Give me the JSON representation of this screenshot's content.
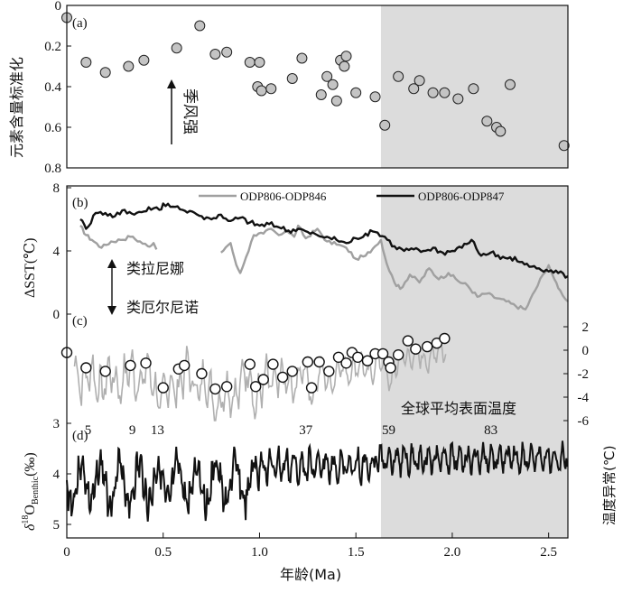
{
  "chart_data": {
    "type": "multi-panel",
    "shaded_interval": [
      1.63,
      2.6
    ],
    "x_axis": {
      "label": "年龄(Ma)",
      "range": [
        0,
        2.6
      ],
      "ticks": [
        "0",
        "0.5",
        "1.0",
        "1.5",
        "2.0",
        "2.5"
      ]
    },
    "panel_a": {
      "tag": "(a)",
      "type": "scatter",
      "ylabel": "元素含量标准化",
      "ylim": [
        0,
        0.8
      ],
      "y_reversed": true,
      "yticks": [
        "0",
        "0.2",
        "0.4",
        "0.6",
        "0.8"
      ],
      "annotation": "季风强",
      "points": [
        [
          0.0,
          0.06
        ],
        [
          0.1,
          0.28
        ],
        [
          0.2,
          0.33
        ],
        [
          0.32,
          0.3
        ],
        [
          0.4,
          0.27
        ],
        [
          0.57,
          0.21
        ],
        [
          0.69,
          0.1
        ],
        [
          0.77,
          0.24
        ],
        [
          0.83,
          0.23
        ],
        [
          0.95,
          0.28
        ],
        [
          1.0,
          0.28
        ],
        [
          0.99,
          0.4
        ],
        [
          1.01,
          0.42
        ],
        [
          1.06,
          0.41
        ],
        [
          1.17,
          0.36
        ],
        [
          1.22,
          0.26
        ],
        [
          1.32,
          0.44
        ],
        [
          1.35,
          0.35
        ],
        [
          1.38,
          0.39
        ],
        [
          1.4,
          0.47
        ],
        [
          1.42,
          0.27
        ],
        [
          1.44,
          0.3
        ],
        [
          1.45,
          0.25
        ],
        [
          1.5,
          0.43
        ],
        [
          1.6,
          0.45
        ],
        [
          1.65,
          0.59
        ],
        [
          1.72,
          0.35
        ],
        [
          1.8,
          0.41
        ],
        [
          1.83,
          0.37
        ],
        [
          1.9,
          0.43
        ],
        [
          1.96,
          0.43
        ],
        [
          2.03,
          0.46
        ],
        [
          2.11,
          0.41
        ],
        [
          2.18,
          0.57
        ],
        [
          2.23,
          0.6
        ],
        [
          2.25,
          0.62
        ],
        [
          2.3,
          0.39
        ],
        [
          2.58,
          0.69
        ]
      ]
    },
    "panel_b": {
      "tag": "(b)",
      "type": "line",
      "ylabel": "ΔSST(℃)",
      "ylim": [
        0,
        8
      ],
      "yticks": [
        "0",
        "4",
        "8"
      ],
      "annotation_up": "类拉尼娜",
      "annotation_down": "类厄尔尼诺",
      "series": [
        {
          "name": "ODP806-ODP846",
          "color": "#a0a0a0",
          "values": [
            [
              0.07,
              5.6
            ],
            [
              0.1,
              5.0
            ],
            [
              0.13,
              4.7
            ],
            [
              0.18,
              4.2
            ],
            [
              0.23,
              4.6
            ],
            [
              0.28,
              4.7
            ],
            [
              0.33,
              4.9
            ],
            [
              0.38,
              4.6
            ],
            [
              0.42,
              4.3
            ],
            [
              0.45,
              4.5
            ],
            [
              0.48,
              3.9
            ],
            [
              0.8,
              3.9
            ],
            [
              0.85,
              4.5
            ],
            [
              0.88,
              3.1
            ],
            [
              0.9,
              2.6
            ],
            [
              0.93,
              3.6
            ],
            [
              0.97,
              5.0
            ],
            [
              1.02,
              5.1
            ],
            [
              1.06,
              5.4
            ],
            [
              1.1,
              5.0
            ],
            [
              1.14,
              5.3
            ],
            [
              1.18,
              4.9
            ],
            [
              1.2,
              5.6
            ],
            [
              1.24,
              4.8
            ],
            [
              1.3,
              5.4
            ],
            [
              1.35,
              4.6
            ],
            [
              1.4,
              4.4
            ],
            [
              1.45,
              4.2
            ],
            [
              1.5,
              3.5
            ],
            [
              1.55,
              3.7
            ],
            [
              1.6,
              4.3
            ],
            [
              1.63,
              4.7
            ],
            [
              1.66,
              3.2
            ],
            [
              1.7,
              2.0
            ],
            [
              1.73,
              1.6
            ],
            [
              1.78,
              2.5
            ],
            [
              1.83,
              2.0
            ],
            [
              1.88,
              2.9
            ],
            [
              1.93,
              2.2
            ],
            [
              1.98,
              2.6
            ],
            [
              2.03,
              2.1
            ],
            [
              2.08,
              1.8
            ],
            [
              2.13,
              1.1
            ],
            [
              2.18,
              1.3
            ],
            [
              2.23,
              1.0
            ],
            [
              2.28,
              0.8
            ],
            [
              2.33,
              0.5
            ],
            [
              2.38,
              0.3
            ],
            [
              2.43,
              1.5
            ],
            [
              2.47,
              2.5
            ],
            [
              2.5,
              3.1
            ],
            [
              2.53,
              2.2
            ],
            [
              2.56,
              1.5
            ],
            [
              2.6,
              0.8
            ]
          ]
        },
        {
          "name": "ODP806-ODP847",
          "color": "#111111",
          "values": [
            [
              0.07,
              6.0
            ],
            [
              0.1,
              5.4
            ],
            [
              0.15,
              6.4
            ],
            [
              0.2,
              6.4
            ],
            [
              0.25,
              6.2
            ],
            [
              0.3,
              6.6
            ],
            [
              0.35,
              6.3
            ],
            [
              0.4,
              6.5
            ],
            [
              0.45,
              6.7
            ],
            [
              0.48,
              6.6
            ],
            [
              0.5,
              7.0
            ],
            [
              0.55,
              6.8
            ],
            [
              0.6,
              6.6
            ],
            [
              0.65,
              6.5
            ],
            [
              0.7,
              6.2
            ],
            [
              0.75,
              6.0
            ],
            [
              0.8,
              6.3
            ],
            [
              0.85,
              5.9
            ],
            [
              0.9,
              6.1
            ],
            [
              0.95,
              5.8
            ],
            [
              1.0,
              5.6
            ],
            [
              1.05,
              5.7
            ],
            [
              1.1,
              5.5
            ],
            [
              1.15,
              5.3
            ],
            [
              1.2,
              5.4
            ],
            [
              1.25,
              5.2
            ],
            [
              1.3,
              5.0
            ],
            [
              1.35,
              4.9
            ],
            [
              1.4,
              4.7
            ],
            [
              1.45,
              4.5
            ],
            [
              1.5,
              4.8
            ],
            [
              1.55,
              5.1
            ],
            [
              1.6,
              5.2
            ],
            [
              1.65,
              4.9
            ],
            [
              1.7,
              4.3
            ],
            [
              1.75,
              4.0
            ],
            [
              1.8,
              4.1
            ],
            [
              1.85,
              4.0
            ],
            [
              1.9,
              4.2
            ],
            [
              1.95,
              3.9
            ],
            [
              2.0,
              4.0
            ],
            [
              2.05,
              4.2
            ],
            [
              2.1,
              4.7
            ],
            [
              2.15,
              3.7
            ],
            [
              2.2,
              3.9
            ],
            [
              2.25,
              3.5
            ],
            [
              2.3,
              3.6
            ],
            [
              2.35,
              3.3
            ],
            [
              2.4,
              3.0
            ],
            [
              2.45,
              2.9
            ],
            [
              2.5,
              2.7
            ],
            [
              2.55,
              2.6
            ],
            [
              2.6,
              2.4
            ]
          ]
        }
      ]
    },
    "panel_c": {
      "tag": "(c)",
      "type": "line+scatter",
      "ylabel_right": "温度异常(℃)",
      "ylim": [
        -6,
        2
      ],
      "yticks": [
        "2",
        "0",
        "-2",
        "-4",
        "-6"
      ],
      "series_label": "全球平均表面温度",
      "line_color": "#b0b0b0",
      "points": [
        [
          0.0,
          -0.2
        ],
        [
          0.1,
          -1.5
        ],
        [
          0.2,
          -1.8
        ],
        [
          0.33,
          -1.3
        ],
        [
          0.41,
          -1.1
        ],
        [
          0.5,
          -3.2
        ],
        [
          0.58,
          -1.6
        ],
        [
          0.61,
          -1.3
        ],
        [
          0.7,
          -2.0
        ],
        [
          0.77,
          -3.3
        ],
        [
          0.83,
          -3.1
        ],
        [
          0.95,
          -1.2
        ],
        [
          0.98,
          -3.1
        ],
        [
          1.02,
          -2.5
        ],
        [
          1.07,
          -1.2
        ],
        [
          1.12,
          -2.3
        ],
        [
          1.17,
          -1.8
        ],
        [
          1.25,
          -1.0
        ],
        [
          1.27,
          -3.2
        ],
        [
          1.31,
          -1.0
        ],
        [
          1.36,
          -1.8
        ],
        [
          1.41,
          -0.6
        ],
        [
          1.45,
          -1.1
        ],
        [
          1.48,
          -0.2
        ],
        [
          1.51,
          -0.6
        ],
        [
          1.56,
          -0.9
        ],
        [
          1.6,
          -0.3
        ],
        [
          1.64,
          -0.3
        ],
        [
          1.67,
          -1.0
        ],
        [
          1.68,
          -1.5
        ],
        [
          1.72,
          -0.4
        ],
        [
          1.77,
          0.8
        ],
        [
          1.81,
          0.1
        ],
        [
          1.87,
          0.3
        ],
        [
          1.92,
          0.6
        ],
        [
          1.96,
          1.0
        ]
      ]
    },
    "panel_d": {
      "tag": "(d)",
      "type": "line",
      "ylabel": "δ18O_Benthic(‰)",
      "ylim": [
        3,
        5
      ],
      "y_reversed": true,
      "yticks": [
        "3",
        "4",
        "5"
      ],
      "line_color": "#111111",
      "stage_labels": [
        {
          "t": "5",
          "x": 0.11
        },
        {
          "t": "9",
          "x": 0.34
        },
        {
          "t": "13",
          "x": 0.47
        },
        {
          "t": "37",
          "x": 1.24
        },
        {
          "t": "59",
          "x": 1.67
        },
        {
          "t": "83",
          "x": 2.2
        }
      ]
    }
  }
}
